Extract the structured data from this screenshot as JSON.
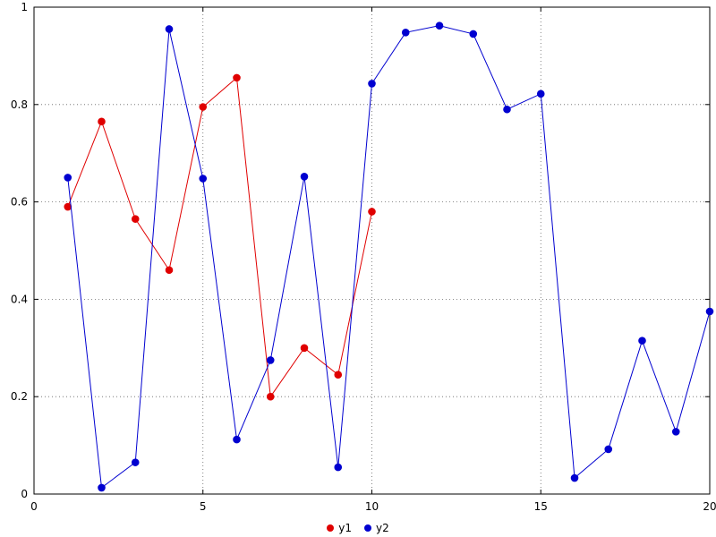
{
  "window": {
    "background": "#ffffff"
  },
  "chart_data": {
    "type": "line",
    "title": "",
    "xlabel": "",
    "ylabel": "",
    "xlim": [
      0,
      20
    ],
    "ylim": [
      0,
      1
    ],
    "xticks": [
      0,
      5,
      10,
      15,
      20
    ],
    "yticks": [
      0,
      0.2,
      0.4,
      0.6,
      0.8,
      1
    ],
    "grid": true,
    "grid_color": "#666666",
    "axis_color": "#000000",
    "legend_position": "bottom-center",
    "marker": "filled-circle",
    "series": [
      {
        "name": "y1",
        "color": "#e00000",
        "x": [
          1,
          2,
          3,
          4,
          5,
          6,
          7,
          8,
          9,
          10
        ],
        "values": [
          0.59,
          0.765,
          0.565,
          0.46,
          0.795,
          0.855,
          0.2,
          0.3,
          0.245,
          0.58
        ]
      },
      {
        "name": "y2",
        "color": "#0000d0",
        "x": [
          1,
          2,
          3,
          4,
          5,
          6,
          7,
          8,
          9,
          10,
          11,
          12,
          13,
          14,
          15,
          16,
          17,
          18,
          19,
          20
        ],
        "values": [
          0.65,
          0.013,
          0.065,
          0.955,
          0.648,
          0.112,
          0.275,
          0.652,
          0.055,
          0.843,
          0.948,
          0.962,
          0.945,
          0.79,
          0.822,
          0.033,
          0.092,
          0.315,
          0.128,
          0.375
        ]
      }
    ]
  }
}
